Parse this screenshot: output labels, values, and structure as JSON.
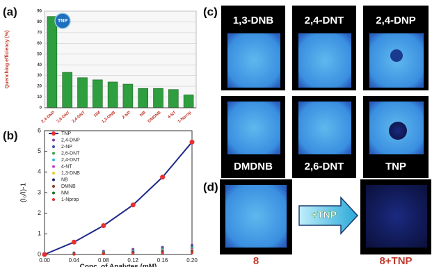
{
  "chart_data": [
    {
      "type": "bar",
      "panel": "(a)",
      "ylabel": "Quenching efficiency (%)",
      "annotation": "TNP",
      "color": "#2e9e3e",
      "categories": [
        "2,4-DNP",
        "2,6-DNT",
        "2,4-DNT",
        "NM",
        "1,3-DNB",
        "2-NP",
        "NB",
        "DMDNB",
        "4-NT",
        "1-Nprop"
      ],
      "values": [
        85,
        33,
        28,
        26,
        24,
        22,
        18,
        18,
        17,
        12
      ],
      "ylim": [
        0,
        90
      ],
      "yticks": [
        0,
        10,
        20,
        30,
        40,
        50,
        60,
        70,
        80,
        90
      ],
      "grid": true
    },
    {
      "type": "line",
      "panel": "(b)",
      "xlabel": "Conc. of Analytes (mM)",
      "ylabel": "(I₀/I)-1",
      "legend": "upper left",
      "x": [
        0,
        0.04,
        0.08,
        0.12,
        0.16,
        0.2
      ],
      "xlim": [
        0,
        0.2
      ],
      "xticks": [
        {
          "value": 0,
          "label": "0.00"
        },
        {
          "value": 0.04,
          "label": "0.04"
        },
        {
          "value": 0.08,
          "label": "0.08"
        },
        {
          "value": 0.12,
          "label": "0.12"
        },
        {
          "value": 0.16,
          "label": "0.16"
        },
        {
          "value": 0.2,
          "label": "0.20"
        }
      ],
      "ylim": [
        0,
        6
      ],
      "yticks": [
        0,
        1,
        2,
        3,
        4,
        5,
        6
      ],
      "series": [
        {
          "name": "TNP",
          "color": "#e8312f",
          "line_color": "#1f2a8a",
          "values": [
            0,
            0.6,
            1.4,
            2.4,
            3.75,
            5.45
          ]
        },
        {
          "name": "2,4-DNP",
          "color": "#7b3fa0",
          "style": "markers",
          "values": [
            0,
            0.08,
            0.15,
            0.25,
            0.35,
            0.45
          ]
        },
        {
          "name": "2-NP",
          "color": "#3a4fb0",
          "style": "markers",
          "values": [
            0,
            0.06,
            0.12,
            0.2,
            0.3,
            0.38
          ]
        },
        {
          "name": "2,6-DNT",
          "color": "#3aa048",
          "style": "markers",
          "values": [
            0,
            0.05,
            0.1,
            0.18,
            0.26,
            0.33
          ]
        },
        {
          "name": "2,4-DNT",
          "color": "#36b8d6",
          "style": "markers",
          "values": [
            0,
            0.04,
            0.09,
            0.15,
            0.22,
            0.28
          ]
        },
        {
          "name": "4-NT",
          "color": "#c040c0",
          "style": "markers",
          "values": [
            0,
            0.04,
            0.08,
            0.13,
            0.19,
            0.24
          ]
        },
        {
          "name": "1,3-DNB",
          "color": "#e0d020",
          "style": "markers",
          "values": [
            0,
            0.03,
            0.07,
            0.11,
            0.16,
            0.2
          ]
        },
        {
          "name": "NB",
          "color": "#1c2a70",
          "style": "markers",
          "values": [
            0,
            0.03,
            0.06,
            0.1,
            0.14,
            0.17
          ]
        },
        {
          "name": "DMNB",
          "color": "#8a3a2a",
          "style": "markers",
          "values": [
            0,
            0.02,
            0.05,
            0.08,
            0.12,
            0.15
          ]
        },
        {
          "name": "NM",
          "color": "#207030",
          "style": "markers",
          "values": [
            0,
            0.02,
            0.04,
            0.07,
            0.1,
            0.12
          ]
        },
        {
          "name": "1-Nprop",
          "color": "#e03030",
          "style": "markers",
          "values": [
            0,
            0.01,
            0.03,
            0.05,
            0.07,
            0.09
          ]
        }
      ]
    }
  ],
  "panel_c": {
    "label": "(c)",
    "tiles": [
      "1,3-DNB",
      "2,4-DNT",
      "2,4-DNP",
      "DMDNB",
      "2,6-DNT",
      "TNP"
    ]
  },
  "panel_d": {
    "label": "(d)",
    "arrow": "+TNP",
    "captions": [
      "8",
      "8+TNP"
    ]
  }
}
